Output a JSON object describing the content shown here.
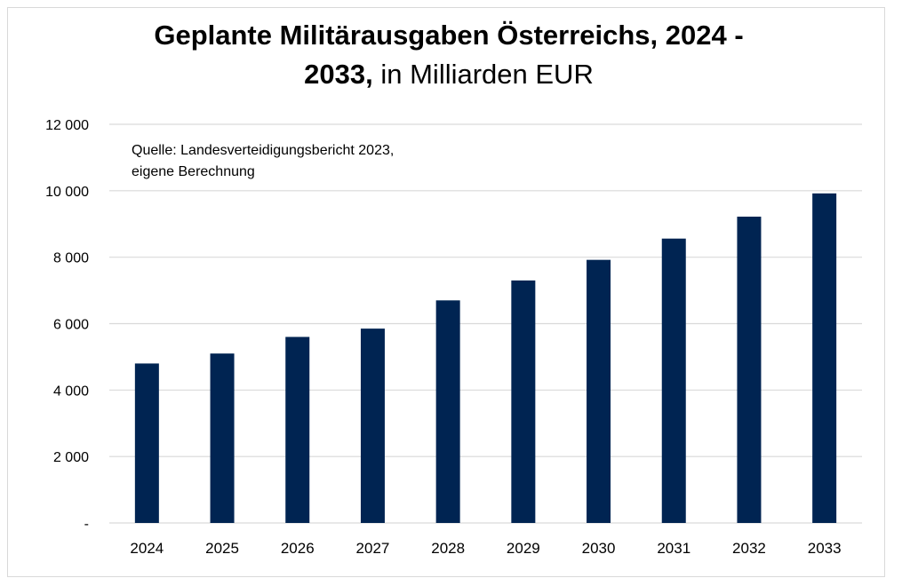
{
  "title": {
    "line1": "Geplante Militärausgaben Österreichs, 2024 -",
    "line2_bold": "2033,",
    "line2_rest": " in Milliarden EUR"
  },
  "source": {
    "line1": "Quelle: Landesverteidigungsbericht 2023,",
    "line2": "eigene Berechnung"
  },
  "colors": {
    "bar": "#002452",
    "grid": "#d9d9d9"
  },
  "chart_data": {
    "type": "bar",
    "categories": [
      "2024",
      "2025",
      "2026",
      "2027",
      "2028",
      "2029",
      "2030",
      "2031",
      "2032",
      "2033"
    ],
    "values": [
      4800,
      5100,
      5600,
      5850,
      6700,
      7300,
      7920,
      8560,
      9220,
      9920
    ],
    "ylim": [
      0,
      12000
    ],
    "yticks": [
      0,
      2000,
      4000,
      6000,
      8000,
      10000,
      12000
    ],
    "ytick_labels": [
      "-",
      "2 000",
      "4 000",
      "6 000",
      "8 000",
      "10 000",
      "12 000"
    ],
    "grid": true
  }
}
